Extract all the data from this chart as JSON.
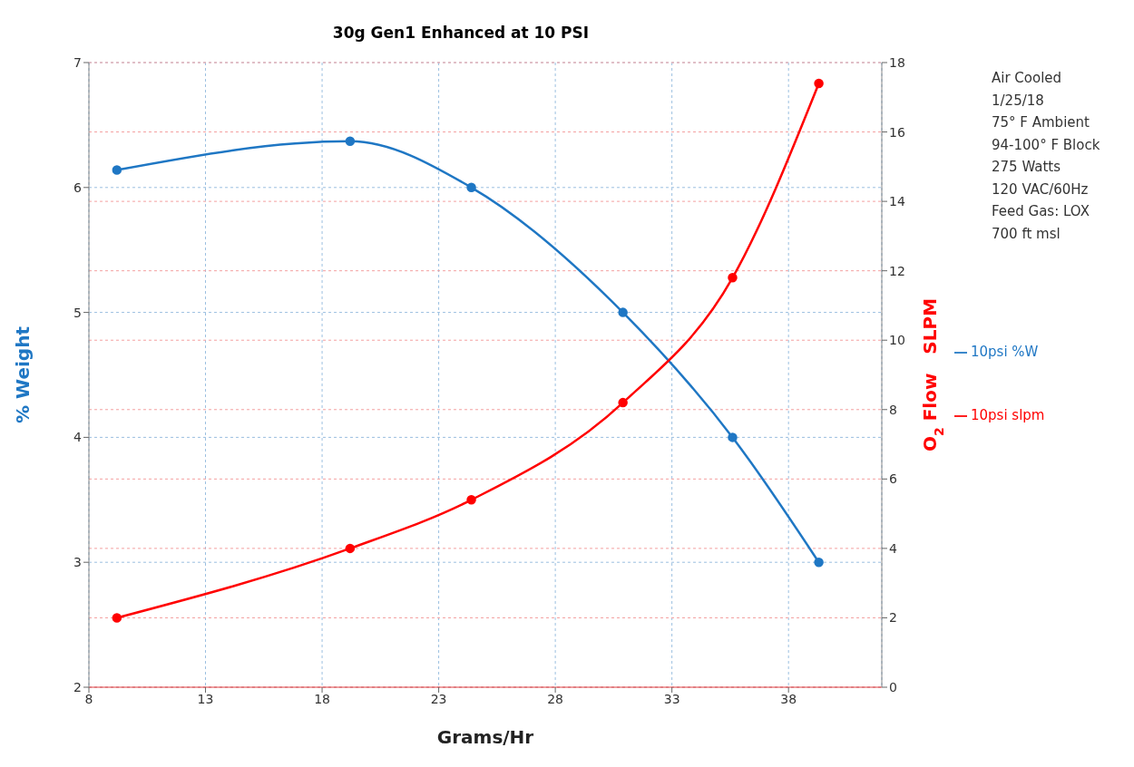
{
  "chart_data": {
    "type": "line",
    "title": "30g Gen1 Enhanced at 10 PSI",
    "xlabel": "Grams/Hr",
    "ylabel": "% Weight",
    "y2label": "O$_{2}$ Flow   SLPM",
    "x": [
      9.2,
      19.2,
      24.4,
      30.9,
      35.6,
      39.3
    ],
    "series": [
      {
        "name": "10psi %W",
        "color": "#1f77c4",
        "values": [
          6.14,
          6.37,
          6.0,
          5.0,
          4.0,
          3.0
        ]
      },
      {
        "name": "10psi slpm",
        "color": "#ff0000",
        "axis": "y2",
        "values": [
          2.0,
          4.0,
          5.4,
          8.2,
          11.8,
          17.4
        ]
      }
    ],
    "xlim": [
      8,
      42
    ],
    "xticks": [
      8,
      13,
      18,
      23,
      28,
      33,
      38
    ],
    "ylim": [
      2,
      7
    ],
    "yticks": [
      2,
      3,
      4,
      5,
      6,
      7
    ],
    "y2lim": [
      0,
      18
    ],
    "y2ticks": [
      0,
      2,
      4,
      6,
      8,
      10,
      12,
      14,
      16,
      18
    ],
    "grid": true,
    "legend": "right",
    "marker": "circle",
    "line_style": "solid",
    "annotations": [
      "Air Cooled",
      "1/25/18",
      "75° F Ambient",
      "94-100° F Block",
      "275 Watts",
      "120 VAC/60Hz",
      "Feed Gas: LOX",
      "700 ft msl"
    ]
  }
}
